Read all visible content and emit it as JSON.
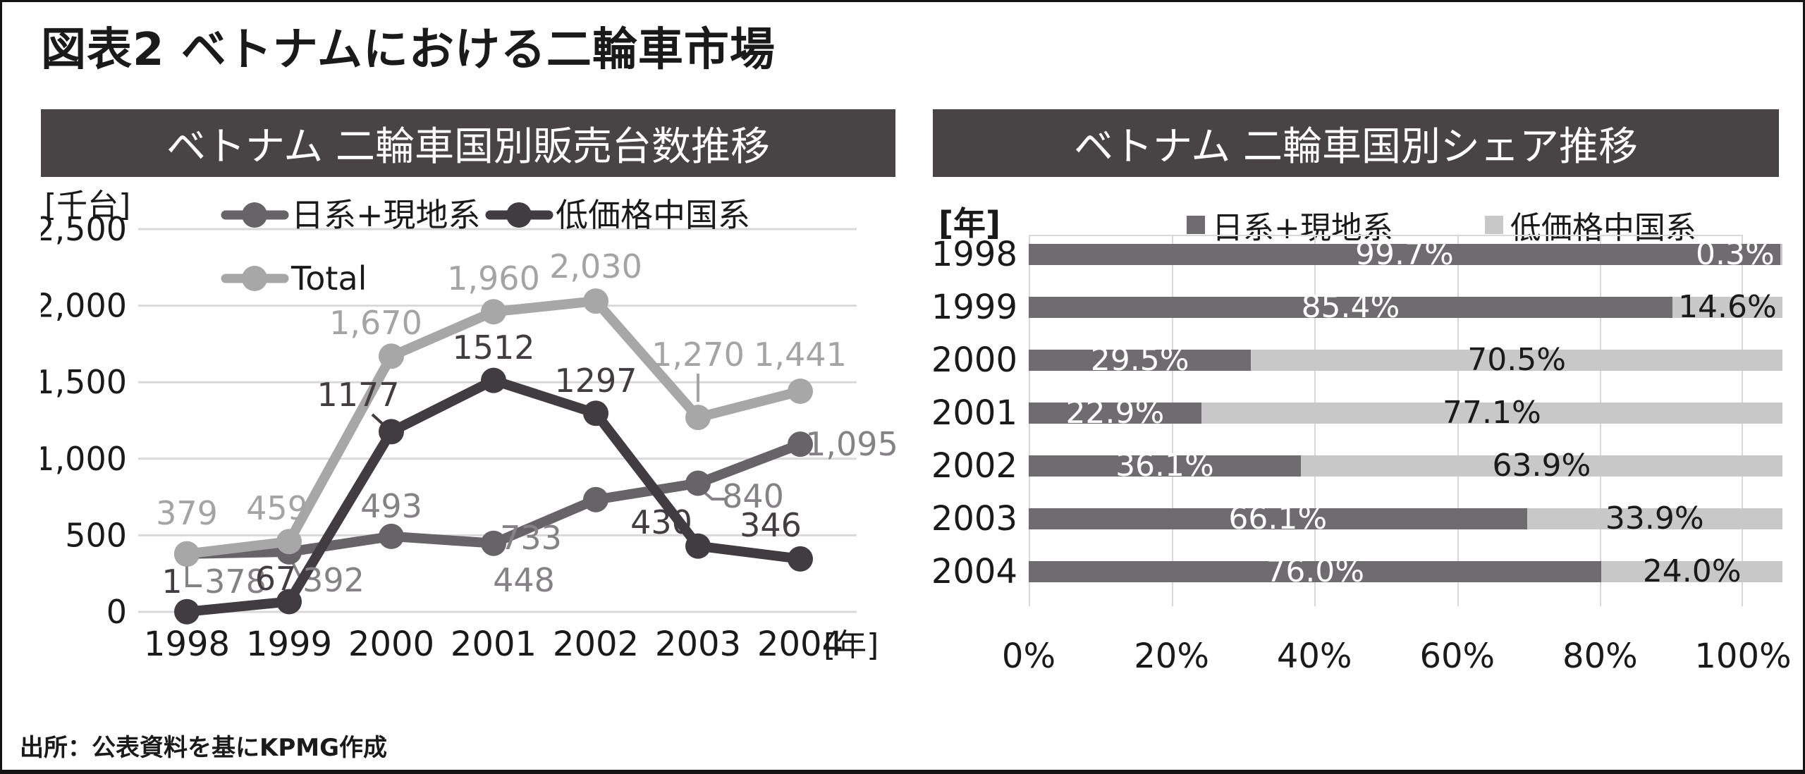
{
  "page": {
    "title": "図表2 ベトナムにおける二輪車市場",
    "source": "出所：公表資料を基にKPMG作成"
  },
  "colors": {
    "header_band": "#484345",
    "grid": "#d9d9d9",
    "text": "#1a1a1a",
    "series_japan_line": "#676467",
    "series_china_line": "#403c3f",
    "series_total_line": "#a8a7a8",
    "label_japan": "#858285",
    "label_china": "#413d40",
    "label_total": "#a5a4a5",
    "bar_dark": "#6e6c6e",
    "bar_light": "#c9c8c9",
    "bar_label_on_dark": "#ffffff",
    "bar_label_on_light": "#1a1a1a"
  },
  "chart_data": [
    {
      "type": "line",
      "title": "ベトナム 二輪車国別販売台数推移",
      "y_unit_label": "[千台]",
      "x_unit_label": "[年]",
      "categories": [
        "1998",
        "1999",
        "2000",
        "2001",
        "2002",
        "2003",
        "2004"
      ],
      "y_ticks": [
        "0",
        "500",
        "1,000",
        "1,500",
        "2,000",
        "2,500"
      ],
      "ylim": [
        0,
        2500
      ],
      "grid": true,
      "legend_position": "top-left-two-rows",
      "series": [
        {
          "name": "日系+現地系",
          "color": "#676467",
          "label_color": "#858285",
          "values": [
            378,
            392,
            493,
            448,
            733,
            840,
            1095
          ],
          "labels": [
            "378",
            "392",
            "493",
            "448",
            "733",
            "840",
            "1,095"
          ]
        },
        {
          "name": "低価格中国系",
          "color": "#403c3f",
          "label_color": "#413d40",
          "values": [
            1,
            67,
            1177,
            1512,
            1297,
            430,
            346
          ],
          "labels": [
            "1",
            "67",
            "1177",
            "1512",
            "1297",
            "430",
            "346"
          ]
        },
        {
          "name": "Total",
          "color": "#a8a7a8",
          "label_color": "#a5a4a5",
          "values": [
            379,
            459,
            1670,
            1960,
            2030,
            1270,
            1441
          ],
          "labels": [
            "379",
            "459",
            "1,670",
            "1,960",
            "2,030",
            "1,270",
            "1,441"
          ]
        }
      ]
    },
    {
      "type": "bar",
      "subtype": "horizontal-stacked-100",
      "title": "ベトナム 二輪車国別シェア推移",
      "y_unit_label": "[年]",
      "categories": [
        "1998",
        "1999",
        "2000",
        "2001",
        "2002",
        "2003",
        "2004"
      ],
      "x_ticks": [
        "0%",
        "20%",
        "40%",
        "60%",
        "80%",
        "100%"
      ],
      "xlim": [
        0,
        100
      ],
      "grid": true,
      "legend_position": "top",
      "series": [
        {
          "name": "日系+現地系",
          "color": "#6e6c6e",
          "values": [
            99.7,
            85.4,
            29.5,
            22.9,
            36.1,
            66.1,
            76.0
          ],
          "labels": [
            "99.7%",
            "85.4%",
            "29.5%",
            "22.9%",
            "36.1%",
            "66.1%",
            "76.0%"
          ]
        },
        {
          "name": "低価格中国系",
          "color": "#c9c8c9",
          "values": [
            0.3,
            14.6,
            70.5,
            77.1,
            63.9,
            33.9,
            24.0
          ],
          "labels": [
            "0.3%",
            "14.6%",
            "70.5%",
            "77.1%",
            "63.9%",
            "33.9%",
            "24.0%"
          ]
        }
      ]
    }
  ]
}
